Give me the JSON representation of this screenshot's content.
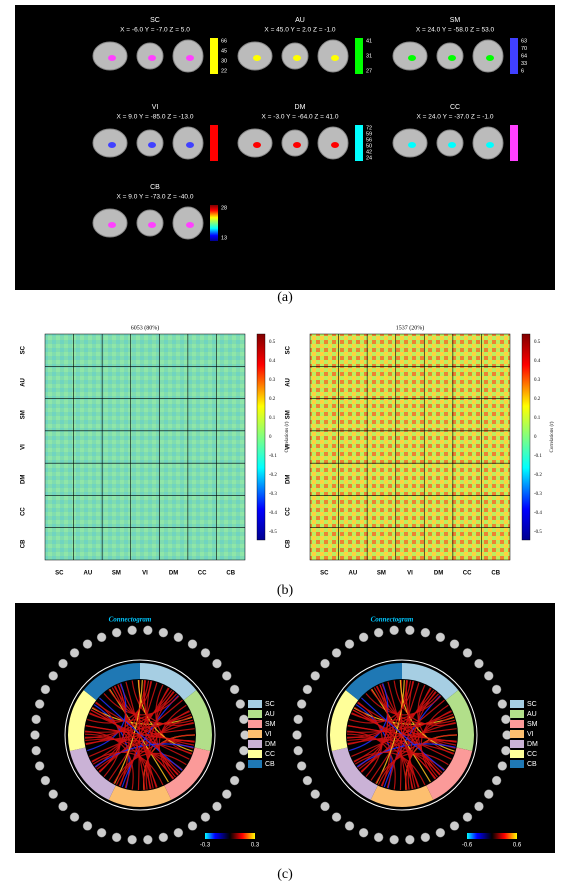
{
  "panel_a": {
    "label": "(a)",
    "networks": [
      {
        "name": "SC",
        "coords": "X = -6.0 Y = -7.0 Z = 5.0",
        "colorbar": [
          "66",
          "45",
          "30",
          "22"
        ]
      },
      {
        "name": "AU",
        "coords": "X = 45.0 Y = 2.0 Z = -1.0",
        "colorbar": [
          "41",
          "31",
          "27"
        ]
      },
      {
        "name": "SM",
        "coords": "X = 24.0 Y = -58.0 Z = 53.0",
        "colorbar": [
          "63",
          "70",
          "64",
          "33",
          "6"
        ]
      },
      {
        "name": "VI",
        "coords": "X = 9.0 Y = -85.0 Z = -13.0",
        "colorbar": []
      },
      {
        "name": "DM",
        "coords": "X = -3.0 Y = -64.0 Z = 41.0",
        "colorbar": [
          "72",
          "59",
          "56",
          "50",
          "42",
          "24"
        ]
      },
      {
        "name": "CC",
        "coords": "X = 24.0 Y = -37.0 Z = -1.0",
        "colorbar": []
      },
      {
        "name": "CB",
        "coords": "X = 9.0 Y = -73.0 Z = -40.0",
        "colorbar": [
          "28",
          "13"
        ]
      }
    ]
  },
  "panel_b": {
    "label": "(b)",
    "colorbar_title": "Correlations (r)",
    "groups": [
      "SC",
      "AU",
      "SM",
      "VI",
      "DM",
      "CC",
      "CB"
    ],
    "matrices": [
      {
        "title": "6053 (80%)",
        "colorbar_ticks": [
          "0.5",
          "0.4",
          "0.3",
          "0.2",
          "0.1",
          "0",
          "-0.1",
          "-0.2",
          "-0.3",
          "-0.4",
          "-0.5"
        ]
      },
      {
        "title": "1537 (20%)",
        "colorbar_ticks": [
          "0.5",
          "0.4",
          "0.3",
          "0.2",
          "0.1",
          "0",
          "-0.1",
          "-0.2",
          "-0.3",
          "-0.4",
          "-0.5"
        ]
      }
    ]
  },
  "panel_c": {
    "label": "(c)",
    "legend": [
      "SC",
      "AU",
      "SM",
      "VI",
      "DM",
      "CC",
      "CB"
    ],
    "diagrams": [
      {
        "title": "Connectogram",
        "colorbar": [
          "-0.3",
          "0.3"
        ]
      },
      {
        "title": "Connectogram",
        "colorbar": [
          "-0.6",
          "0.6"
        ]
      }
    ]
  }
}
